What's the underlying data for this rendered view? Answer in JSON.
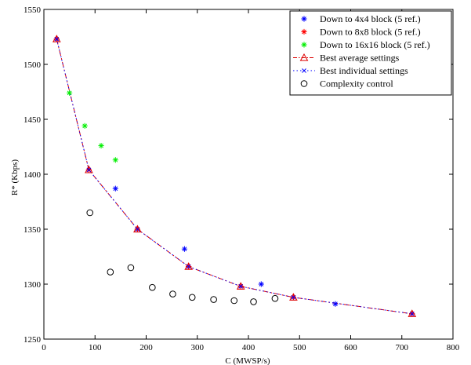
{
  "chart_data": {
    "type": "scatter",
    "xlabel": "C (MWSP/s)",
    "ylabel": "R* (Kbps)",
    "xlim": [
      0,
      800
    ],
    "ylim": [
      1250,
      1550
    ],
    "xticks": [
      0,
      100,
      200,
      300,
      400,
      500,
      600,
      700,
      800
    ],
    "yticks": [
      1250,
      1300,
      1350,
      1400,
      1450,
      1500,
      1550
    ],
    "grid": false,
    "legend_position": "top-right",
    "series": [
      {
        "name": "Down to 4x4 block (5 ref.)",
        "marker": "asterisk",
        "color": "#0000ff",
        "points": [
          [
            25,
            1523
          ],
          [
            88,
            1404
          ],
          [
            140,
            1387
          ],
          [
            183,
            1350
          ],
          [
            275,
            1332
          ],
          [
            283,
            1316
          ],
          [
            385,
            1298
          ],
          [
            425,
            1300
          ],
          [
            488,
            1288
          ],
          [
            570,
            1282
          ],
          [
            720,
            1273
          ]
        ]
      },
      {
        "name": "Down to 8x8 block (5 ref.)",
        "marker": "asterisk",
        "color": "#ff0000",
        "points": [
          [
            25,
            1523
          ],
          [
            88,
            1404
          ],
          [
            183,
            1350
          ],
          [
            283,
            1316
          ],
          [
            385,
            1298
          ],
          [
            488,
            1288
          ],
          [
            720,
            1273
          ]
        ]
      },
      {
        "name": "Down to 16x16 block (5 ref.)",
        "marker": "asterisk",
        "color": "#00ee00",
        "points": [
          [
            50,
            1474
          ],
          [
            80,
            1444
          ],
          [
            112,
            1426
          ],
          [
            140,
            1413
          ]
        ]
      },
      {
        "name": "Best average settings",
        "marker": "triangle-dashdot",
        "color": "#dd0000",
        "points": [
          [
            25,
            1523
          ],
          [
            88,
            1404
          ],
          [
            183,
            1350
          ],
          [
            283,
            1316
          ],
          [
            385,
            1298
          ],
          [
            488,
            1288
          ],
          [
            720,
            1273
          ]
        ]
      },
      {
        "name": "Best individual settings",
        "marker": "x-dotted",
        "color": "#0000ff",
        "points": [
          [
            25,
            1523
          ],
          [
            88,
            1404
          ],
          [
            183,
            1350
          ],
          [
            283,
            1316
          ],
          [
            385,
            1298
          ],
          [
            488,
            1288
          ],
          [
            720,
            1273
          ]
        ]
      },
      {
        "name": "Complexity control",
        "marker": "circle",
        "color": "#000000",
        "points": [
          [
            90,
            1365
          ],
          [
            130,
            1311
          ],
          [
            170,
            1315
          ],
          [
            212,
            1297
          ],
          [
            252,
            1291
          ],
          [
            290,
            1288
          ],
          [
            332,
            1286
          ],
          [
            372,
            1285
          ],
          [
            410,
            1284
          ],
          [
            452,
            1287
          ]
        ]
      }
    ]
  }
}
